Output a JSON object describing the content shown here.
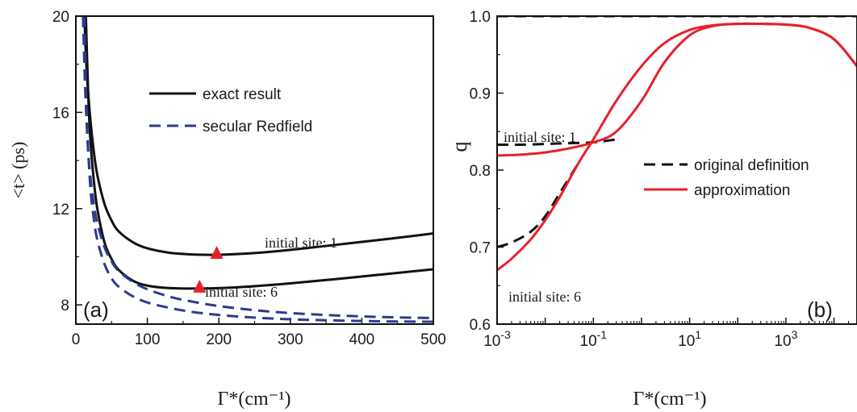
{
  "chart_data": [
    {
      "type": "line",
      "panel_label": "(a)",
      "ylabel": "<t> (ps)",
      "xlabel": "Γ*(cm⁻¹)",
      "xlim": [
        0,
        500
      ],
      "ylim": [
        7.2,
        20
      ],
      "x_ticks": [
        0,
        100,
        200,
        300,
        400,
        500
      ],
      "x_tick_labels": [
        "0",
        "100",
        "200",
        "300",
        "400",
        "500"
      ],
      "y_ticks": [
        8,
        12,
        16,
        20
      ],
      "y_tick_labels": [
        "8",
        "12",
        "16",
        "20"
      ],
      "legend": {
        "position": "top-center",
        "entries": [
          "exact result",
          "secular Redfield"
        ]
      },
      "annotations": [
        {
          "text": "initial site: 1",
          "x": 300,
          "y": 10.45
        },
        {
          "text": "initial site: 6",
          "x": 245,
          "y": 9.1
        }
      ],
      "series": [
        {
          "name": "exact result",
          "initial_site": 1,
          "style": "solid",
          "color": "#111111",
          "x": [
            12,
            15,
            20,
            25,
            30,
            40,
            50,
            60,
            80,
            100,
            130,
            160,
            195,
            230,
            270,
            320,
            380,
            440,
            500
          ],
          "y": [
            20,
            17.8,
            15.8,
            14.4,
            13.4,
            12.2,
            11.5,
            11.05,
            10.6,
            10.35,
            10.17,
            10.1,
            10.08,
            10.12,
            10.2,
            10.35,
            10.55,
            10.75,
            10.97
          ]
        },
        {
          "name": "exact result",
          "initial_site": 6,
          "style": "solid",
          "color": "#111111",
          "x": [
            14,
            17,
            20,
            25,
            30,
            40,
            50,
            60,
            80,
            100,
            130,
            175,
            220,
            270,
            320,
            380,
            440,
            500
          ],
          "y": [
            20,
            17.0,
            15.0,
            13.2,
            12.0,
            10.6,
            9.9,
            9.45,
            9.0,
            8.8,
            8.7,
            8.68,
            8.72,
            8.82,
            8.95,
            9.12,
            9.3,
            9.48
          ]
        },
        {
          "name": "secular Redfield",
          "initial_site": 1,
          "style": "dashed",
          "color": "#2c3a8f",
          "x": [
            10,
            13,
            17,
            20,
            25,
            30,
            40,
            50,
            60,
            80,
            100,
            130,
            160,
            200,
            250,
            300,
            350,
            400,
            450,
            500
          ],
          "y": [
            20,
            17.0,
            14.5,
            13.4,
            12.2,
            11.4,
            10.4,
            9.8,
            9.4,
            8.95,
            8.65,
            8.35,
            8.15,
            7.95,
            7.78,
            7.66,
            7.58,
            7.52,
            7.48,
            7.45
          ]
        },
        {
          "name": "secular Redfield",
          "initial_site": 6,
          "style": "dashed",
          "color": "#2c3a8f",
          "x": [
            12,
            15,
            20,
            25,
            30,
            40,
            50,
            60,
            80,
            100,
            130,
            160,
            200,
            250,
            300,
            350,
            400,
            450,
            500
          ],
          "y": [
            20,
            16.0,
            13.0,
            11.6,
            10.7,
            9.7,
            9.1,
            8.75,
            8.35,
            8.1,
            7.88,
            7.72,
            7.58,
            7.47,
            7.4,
            7.36,
            7.33,
            7.31,
            7.3
          ]
        }
      ],
      "markers": [
        {
          "shape": "triangle",
          "color": "#e8202a",
          "x": 197,
          "y": 10.08
        },
        {
          "shape": "triangle",
          "color": "#e8202a",
          "x": 173,
          "y": 8.68
        }
      ]
    },
    {
      "type": "line",
      "panel_label": "(b)",
      "ylabel": "q",
      "xlabel": "Γ*(cm⁻¹)",
      "x_scale": "log",
      "xlim": [
        0.001,
        30000
      ],
      "ylim": [
        0.6,
        1.0
      ],
      "x_ticks": [
        0.001,
        0.1,
        10,
        1000
      ],
      "x_tick_labels": [
        {
          "base": "10",
          "exp": "-3"
        },
        {
          "base": "10",
          "exp": "-1"
        },
        {
          "base": "10",
          "exp": "1"
        },
        {
          "base": "10",
          "exp": "3"
        }
      ],
      "y_ticks": [
        0.6,
        0.7,
        0.8,
        0.9,
        1.0
      ],
      "y_tick_labels": [
        "0.6",
        "0.7",
        "0.8",
        "0.9",
        "1.0"
      ],
      "legend": {
        "position": "center-right",
        "entries": [
          "original definition",
          "approximation"
        ]
      },
      "annotations": [
        {
          "text": "initial site: 1",
          "x": 0.001,
          "y": 0.842
        },
        {
          "text": "initial site: 6",
          "x": 0.0013,
          "y": 0.655
        }
      ],
      "series": [
        {
          "name": "original definition",
          "initial_site": 1,
          "style": "dashed",
          "color": "#111111",
          "x": [
            0.001,
            0.003,
            0.01,
            0.03,
            0.1,
            0.3
          ],
          "y": [
            0.833,
            0.833,
            0.834,
            0.835,
            0.836,
            0.84
          ]
        },
        {
          "name": "original definition",
          "initial_site": 6,
          "style": "dashed",
          "color": "#111111",
          "x": [
            0.001,
            0.002,
            0.005,
            0.01,
            0.02,
            0.05
          ],
          "y": [
            0.7,
            0.706,
            0.72,
            0.74,
            0.77,
            0.81
          ]
        },
        {
          "name": "approximation",
          "initial_site": 1,
          "style": "solid",
          "color": "#e8202a",
          "x": [
            0.001,
            0.003,
            0.01,
            0.03,
            0.1,
            0.3,
            1,
            3,
            10,
            30,
            100,
            300,
            1000,
            3000,
            10000,
            30000
          ],
          "y": [
            0.819,
            0.82,
            0.823,
            0.828,
            0.836,
            0.85,
            0.89,
            0.94,
            0.975,
            0.987,
            0.99,
            0.99,
            0.989,
            0.985,
            0.97,
            0.935
          ]
        },
        {
          "name": "approximation",
          "initial_site": 6,
          "style": "solid",
          "color": "#e8202a",
          "x": [
            0.001,
            0.002,
            0.005,
            0.01,
            0.02,
            0.05,
            0.1,
            0.3,
            1,
            3,
            10,
            30,
            100,
            300,
            1000,
            3000,
            10000,
            30000
          ],
          "y": [
            0.67,
            0.685,
            0.71,
            0.735,
            0.765,
            0.81,
            0.84,
            0.89,
            0.935,
            0.965,
            0.982,
            0.988,
            0.99,
            0.99,
            0.989,
            0.985,
            0.97,
            0.935
          ]
        },
        {
          "name": "",
          "style": "dashed",
          "color": "#111111",
          "x": [
            0.001,
            30000
          ],
          "y": [
            1.0,
            1.0
          ]
        }
      ]
    }
  ]
}
